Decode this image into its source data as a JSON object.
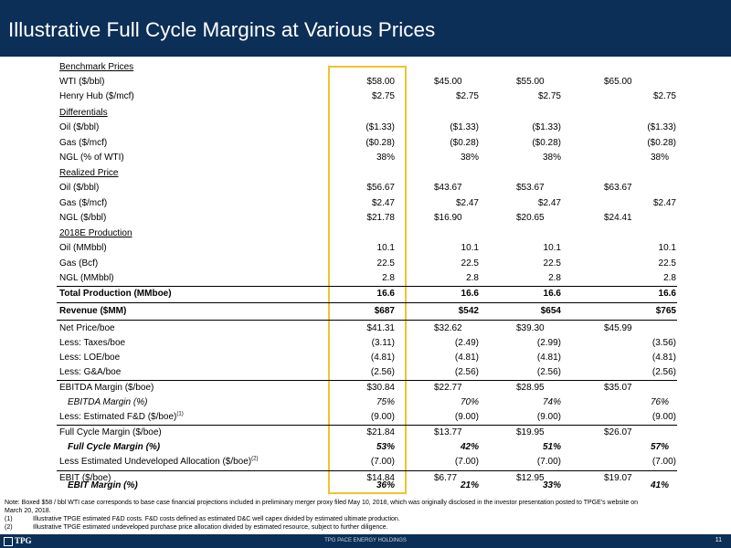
{
  "header": {
    "title": "Illustrative Full Cycle Margins at Various Prices"
  },
  "table": {
    "sections": {
      "benchmark": "Benchmark Prices",
      "differentials": "Differentials",
      "realized": "Realized Price",
      "production": "2018E Production"
    },
    "rows": {
      "wti": {
        "label": "WTI ($/bbl)",
        "c1": "$58.00",
        "c2": "$45.00",
        "c3": "$55.00",
        "c4": "$65.00"
      },
      "henry": {
        "label": "Henry Hub ($/mcf)",
        "c1": "$2.75",
        "c2": "$2.75",
        "c3": "$2.75",
        "c4": "$2.75"
      },
      "diff_oil": {
        "label": "Oil ($/bbl)",
        "c1": "($1.33)",
        "c2": "($1.33)",
        "c3": "($1.33)",
        "c4": "($1.33)"
      },
      "diff_gas": {
        "label": "Gas ($/mcf)",
        "c1": "($0.28)",
        "c2": "($0.28)",
        "c3": "($0.28)",
        "c4": "($0.28)"
      },
      "diff_ngl": {
        "label": "NGL (% of WTI)",
        "c1": "38%",
        "c2": "38%",
        "c3": "38%",
        "c4": "38%"
      },
      "real_oil": {
        "label": "Oil ($/bbl)",
        "c1": "$56.67",
        "c2": "$43.67",
        "c3": "$53.67",
        "c4": "$63.67"
      },
      "real_gas": {
        "label": "Gas ($/mcf)",
        "c1": "$2.47",
        "c2": "$2.47",
        "c3": "$2.47",
        "c4": "$2.47"
      },
      "real_ngl": {
        "label": "NGL ($/bbl)",
        "c1": "$21.78",
        "c2": "$16.90",
        "c3": "$20.65",
        "c4": "$24.41"
      },
      "prod_oil": {
        "label": "Oil (MMbbl)",
        "c1": "10.1",
        "c2": "10.1",
        "c3": "10.1",
        "c4": "10.1"
      },
      "prod_gas": {
        "label": "Gas (Bcf)",
        "c1": "22.5",
        "c2": "22.5",
        "c3": "22.5",
        "c4": "22.5"
      },
      "prod_ngl": {
        "label": "NGL (MMbbl)",
        "c1": "2.8",
        "c2": "2.8",
        "c3": "2.8",
        "c4": "2.8"
      },
      "total_prod": {
        "label": "Total Production (MMboe)",
        "c1": "16.6",
        "c2": "16.6",
        "c3": "16.6",
        "c4": "16.6"
      },
      "revenue": {
        "label": "Revenue ($MM)",
        "c1": "$687",
        "c2": "$542",
        "c3": "$654",
        "c4": "$765"
      },
      "net_price": {
        "label": "Net Price/boe",
        "c1": "$41.31",
        "c2": "$32.62",
        "c3": "$39.30",
        "c4": "$45.99"
      },
      "taxes": {
        "label": "Less: Taxes/boe",
        "c1": "(3.11)",
        "c2": "(2.49)",
        "c3": "(2.99)",
        "c4": "(3.56)"
      },
      "loe": {
        "label": "Less: LOE/boe",
        "c1": "(4.81)",
        "c2": "(4.81)",
        "c3": "(4.81)",
        "c4": "(4.81)"
      },
      "gna": {
        "label": "Less: G&A/boe",
        "c1": "(2.56)",
        "c2": "(2.56)",
        "c3": "(2.56)",
        "c4": "(2.56)"
      },
      "ebitda": {
        "label": "EBITDA Margin ($/boe)",
        "c1": "$30.84",
        "c2": "$22.77",
        "c3": "$28.95",
        "c4": "$35.07"
      },
      "ebitda_pct": {
        "label": "EBITDA Margin (%)",
        "c1": "75%",
        "c2": "70%",
        "c3": "74%",
        "c4": "76%"
      },
      "fnd": {
        "label": "Less: Estimated F&D ($/boe)",
        "sup": "(1)",
        "c1": "(9.00)",
        "c2": "(9.00)",
        "c3": "(9.00)",
        "c4": "(9.00)"
      },
      "fcm": {
        "label": "Full Cycle Margin ($/boe)",
        "c1": "$21.84",
        "c2": "$13.77",
        "c3": "$19.95",
        "c4": "$26.07"
      },
      "fcm_pct": {
        "label": "Full Cycle Margin (%)",
        "c1": "53%",
        "c2": "42%",
        "c3": "51%",
        "c4": "57%"
      },
      "undev": {
        "label": "Less Estimated Undeveloped Allocation ($/boe)",
        "sup": "(2)",
        "c1": "(7.00)",
        "c2": "(7.00)",
        "c3": "(7.00)",
        "c4": "(7.00)"
      },
      "ebit": {
        "label": "EBIT ($/boe)",
        "c1": "$14.84",
        "c2": "$6.77",
        "c3": "$12.95",
        "c4": "$19.07"
      },
      "ebit_pct": {
        "label": "EBIT Margin (%)",
        "c1": "36%",
        "c2": "21%",
        "c3": "33%",
        "c4": "41%"
      }
    }
  },
  "notes": {
    "note_line1": "Note: Boxed $58 / bbl WTI case corresponds to base case financial projections included in preliminary merger proxy filed May 10, 2018, which was originally disclosed in the investor presentation posted to TPGE's website on",
    "note_line2": "March 20, 2018.",
    "fn1_marker": "(1)",
    "fn1": "Illustrative TPGE estimated F&D costs. F&D costs defined as estimated D&C well capex divided by estimated ultimate production.",
    "fn2_marker": "(2)",
    "fn2": "Illustrative TPGE estimated undeveloped purchase price allocation divided by estimated resource, subject to further diligence."
  },
  "footer": {
    "logo_text": "TPG",
    "center_text": "TPG PACE ENERGY HOLDINGS",
    "page_number": "11"
  }
}
